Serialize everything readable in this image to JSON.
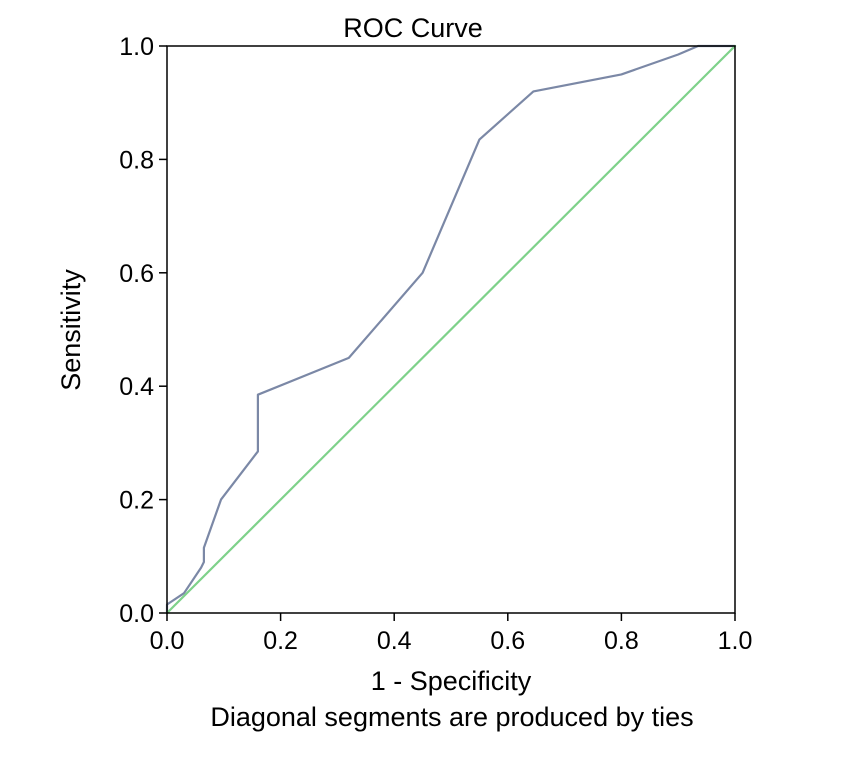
{
  "chart_data": {
    "type": "line",
    "title": "ROC Curve",
    "xlabel": "1 - Specificity",
    "ylabel": "Sensitivity",
    "footnote": "Diagonal segments are produced by ties",
    "xlim": [
      0.0,
      1.0
    ],
    "ylim": [
      0.0,
      1.0
    ],
    "xticks": [
      "0.0",
      "0.2",
      "0.4",
      "0.6",
      "0.8",
      "1.0"
    ],
    "yticks": [
      "0.0",
      "0.2",
      "0.4",
      "0.6",
      "0.8",
      "1.0"
    ],
    "grid": false,
    "series": [
      {
        "color": "#7b88a6",
        "x": [
          0.0,
          0.0,
          0.03,
          0.06,
          0.065,
          0.065,
          0.095,
          0.16,
          0.16,
          0.32,
          0.45,
          0.55,
          0.645,
          0.8,
          0.9,
          0.935,
          1.0
        ],
        "y": [
          0.0,
          0.015,
          0.035,
          0.08,
          0.09,
          0.115,
          0.2,
          0.285,
          0.385,
          0.45,
          0.6,
          0.835,
          0.92,
          0.95,
          0.985,
          1.0,
          1.0
        ]
      },
      {
        "color": "#7ed18a",
        "x": [
          0.0,
          1.0
        ],
        "y": [
          0.0,
          1.0
        ]
      }
    ]
  }
}
